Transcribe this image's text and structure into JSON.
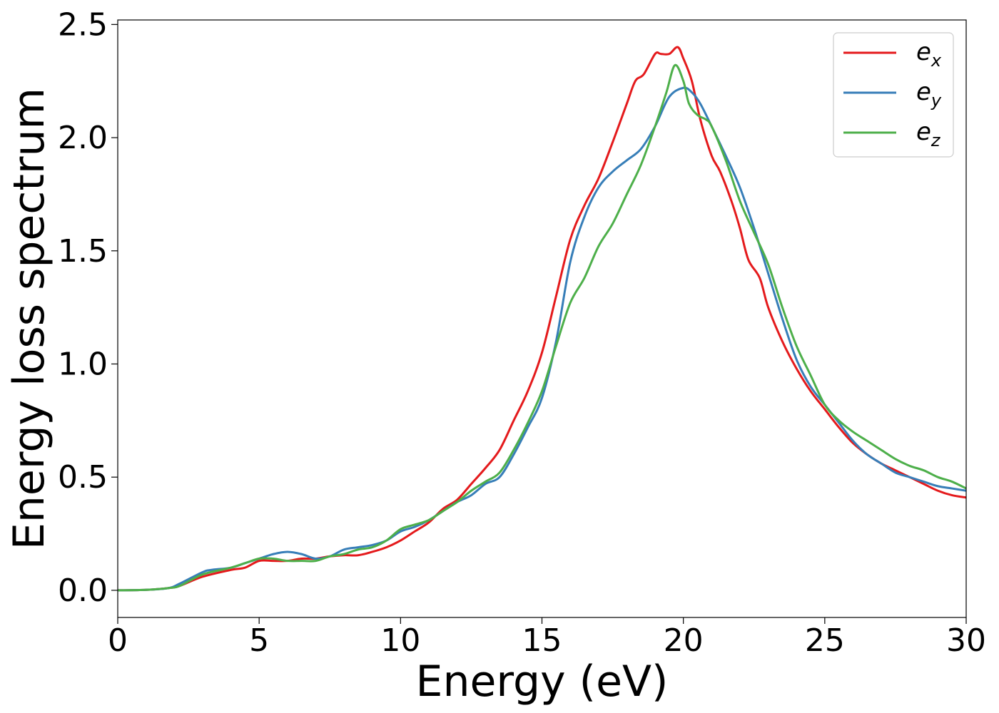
{
  "chart_data": {
    "type": "line",
    "title": "",
    "xlabel": "Energy (eV)",
    "ylabel": "Energy loss spectrum",
    "xlim": [
      0,
      30
    ],
    "ylim": [
      -0.12,
      2.52
    ],
    "xticks": [
      0,
      5,
      10,
      15,
      20,
      25,
      30
    ],
    "xtick_labels": [
      "0",
      "5",
      "10",
      "15",
      "20",
      "25",
      "30"
    ],
    "yticks": [
      0.0,
      0.5,
      1.0,
      1.5,
      2.0,
      2.5
    ],
    "ytick_labels": [
      "0.0",
      "0.5",
      "1.0",
      "1.5",
      "2.0",
      "2.5"
    ],
    "grid": false,
    "legend_position": "top-right",
    "series": [
      {
        "name": "e_x",
        "legend_base": "e",
        "legend_sub": "x",
        "color": "#e41a1c",
        "x": [
          0,
          1,
          1.8,
          2.2,
          3,
          4,
          4.5,
          5,
          5.5,
          6,
          6.5,
          7,
          7.5,
          8,
          8.5,
          9,
          9.5,
          10,
          10.5,
          11,
          11.5,
          12,
          12.5,
          13,
          13.5,
          14,
          14.5,
          15,
          15.5,
          16,
          16.5,
          17,
          17.5,
          18,
          18.3,
          18.6,
          19,
          19.2,
          19.5,
          19.8,
          20,
          20.3,
          20.6,
          21,
          21.3,
          21.7,
          22,
          22.3,
          22.7,
          23,
          23.5,
          24,
          24.5,
          25,
          25.5,
          26,
          26.5,
          27,
          27.5,
          28,
          28.5,
          29,
          29.5,
          30
        ],
        "y": [
          0,
          0.002,
          0.01,
          0.02,
          0.06,
          0.09,
          0.1,
          0.13,
          0.13,
          0.13,
          0.14,
          0.14,
          0.15,
          0.155,
          0.155,
          0.17,
          0.19,
          0.22,
          0.26,
          0.3,
          0.36,
          0.4,
          0.47,
          0.54,
          0.62,
          0.75,
          0.88,
          1.05,
          1.3,
          1.55,
          1.7,
          1.82,
          1.98,
          2.15,
          2.25,
          2.28,
          2.37,
          2.37,
          2.37,
          2.4,
          2.35,
          2.25,
          2.08,
          1.92,
          1.85,
          1.72,
          1.6,
          1.46,
          1.38,
          1.25,
          1.1,
          0.98,
          0.88,
          0.8,
          0.72,
          0.65,
          0.6,
          0.56,
          0.53,
          0.5,
          0.47,
          0.44,
          0.42,
          0.41
        ]
      },
      {
        "name": "e_y",
        "legend_base": "e",
        "legend_sub": "y",
        "color": "#377eb8",
        "x": [
          0,
          1,
          1.8,
          2.2,
          3,
          3.3,
          4,
          4.5,
          5,
          5.5,
          6,
          6.5,
          7,
          7.5,
          8,
          8.5,
          9,
          9.5,
          10,
          10.5,
          11,
          11.5,
          12,
          12.5,
          13,
          13.5,
          14,
          14.5,
          15,
          15.5,
          16,
          16.5,
          17,
          17.5,
          18,
          18.5,
          19,
          19.5,
          20,
          20.3,
          20.6,
          21,
          21.5,
          22,
          22.5,
          23,
          23.5,
          24,
          24.5,
          25,
          25.5,
          26,
          26.5,
          27,
          27.5,
          28,
          28.5,
          29,
          29.5,
          30
        ],
        "y": [
          0,
          0.002,
          0.01,
          0.03,
          0.08,
          0.09,
          0.1,
          0.12,
          0.14,
          0.16,
          0.17,
          0.16,
          0.14,
          0.15,
          0.18,
          0.19,
          0.2,
          0.22,
          0.26,
          0.28,
          0.31,
          0.35,
          0.39,
          0.42,
          0.47,
          0.5,
          0.6,
          0.72,
          0.85,
          1.1,
          1.45,
          1.65,
          1.78,
          1.85,
          1.9,
          1.95,
          2.05,
          2.18,
          2.22,
          2.2,
          2.15,
          2.05,
          1.92,
          1.78,
          1.6,
          1.4,
          1.2,
          1.02,
          0.9,
          0.82,
          0.74,
          0.66,
          0.6,
          0.56,
          0.52,
          0.5,
          0.48,
          0.46,
          0.45,
          0.44
        ]
      },
      {
        "name": "e_z",
        "legend_base": "e",
        "legend_sub": "z",
        "color": "#4daf4a",
        "x": [
          0,
          1,
          1.8,
          2.2,
          3,
          4,
          4.5,
          5,
          5.5,
          6,
          6.5,
          7,
          7.5,
          8,
          8.5,
          9,
          9.5,
          10,
          10.5,
          11,
          11.5,
          12,
          12.5,
          13,
          13.5,
          14,
          14.5,
          15,
          15.5,
          16,
          16.5,
          17,
          17.5,
          18,
          18.5,
          19,
          19.4,
          19.7,
          20,
          20.2,
          20.5,
          20.8,
          21,
          21.5,
          22,
          22.5,
          23,
          23.5,
          24,
          24.5,
          25,
          25.5,
          26,
          26.5,
          27,
          27.5,
          28,
          28.5,
          29,
          29.5,
          30
        ],
        "y": [
          0,
          0.002,
          0.01,
          0.02,
          0.07,
          0.1,
          0.12,
          0.14,
          0.14,
          0.13,
          0.13,
          0.13,
          0.15,
          0.16,
          0.18,
          0.19,
          0.22,
          0.27,
          0.29,
          0.31,
          0.35,
          0.39,
          0.44,
          0.48,
          0.52,
          0.62,
          0.74,
          0.88,
          1.08,
          1.27,
          1.38,
          1.52,
          1.62,
          1.75,
          1.88,
          2.05,
          2.2,
          2.32,
          2.25,
          2.15,
          2.1,
          2.08,
          2.05,
          1.9,
          1.72,
          1.58,
          1.44,
          1.25,
          1.08,
          0.95,
          0.82,
          0.75,
          0.7,
          0.66,
          0.62,
          0.58,
          0.55,
          0.53,
          0.5,
          0.48,
          0.45
        ]
      }
    ]
  }
}
